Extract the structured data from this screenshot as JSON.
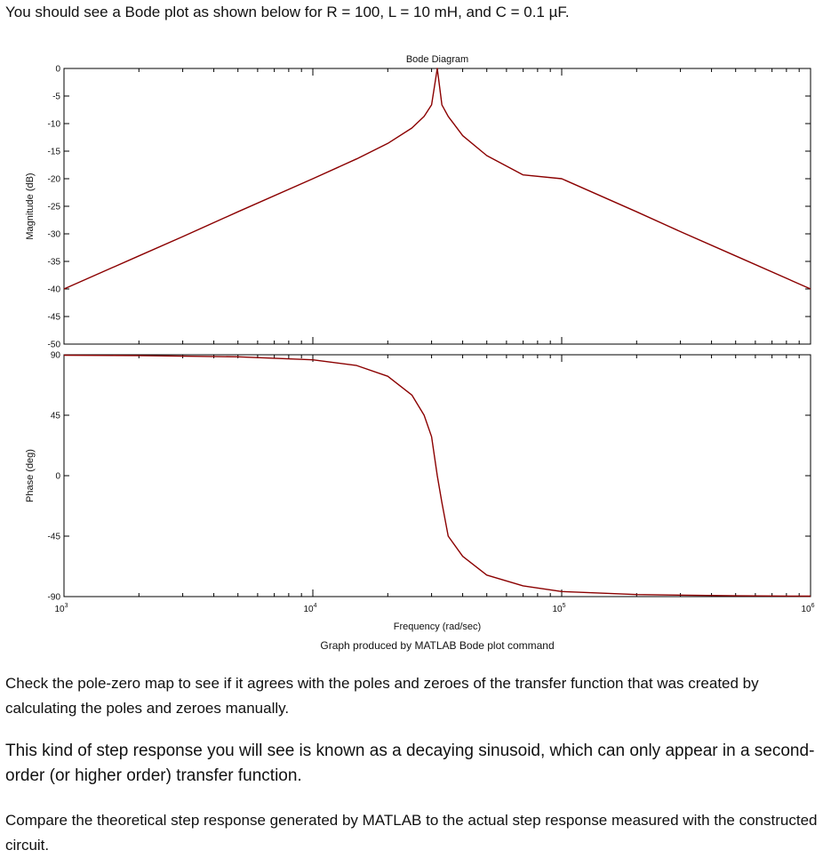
{
  "intro_text": "You should see a Bode plot as shown below for R = 100, L = 10 mH, and C = 0.1 µF.",
  "caption": "Graph produced by MATLAB Bode plot command",
  "paragraphs": [
    "Check the pole-zero map to see if it agrees with the poles and zeroes of the transfer function that was created by calculating the poles and zeroes manually.",
    "This kind of step response you will see is known as a decaying sinusoid, which can only appear in a second-order (or higher order) transfer function.",
    "Compare the theoretical step response generated by MATLAB to the actual step response measured with the constructed circuit."
  ],
  "colors": {
    "curve": "#8b0000",
    "axis": "#000000"
  },
  "chart_data": {
    "type": "line",
    "title": "Bode Diagram",
    "xlabel": "Frequency (rad/sec)",
    "xscale": "log",
    "xlim": [
      1000,
      1000000
    ],
    "x_tick_labels": [
      "10^3",
      "10^4",
      "10^5",
      "10^6"
    ],
    "grid": false,
    "panels": [
      {
        "name": "magnitude",
        "ylabel": "Magnitude (dB)",
        "ylim": [
          -50,
          0
        ],
        "y_ticks": [
          0,
          -5,
          -10,
          -15,
          -20,
          -25,
          -30,
          -35,
          -40,
          -45,
          -50
        ],
        "series": [
          {
            "x": [
              1000,
              2000,
              3000,
              5000,
              10000,
              15000,
              20000,
              25000,
              28000,
              30000,
              31623,
              33000,
              35000,
              40000,
              50000,
              70000,
              100000,
              200000,
              300000,
              500000,
              1000000
            ],
            "values": [
              -40,
              -34,
              -30.5,
              -26,
              -20,
              -16.4,
              -13.6,
              -10.8,
              -8.7,
              -6.6,
              0,
              -6.6,
              -8.7,
              -12.2,
              -15.8,
              -19.3,
              -20,
              -26,
              -29.6,
              -34,
              -40
            ]
          }
        ]
      },
      {
        "name": "phase",
        "ylabel": "Phase (deg)",
        "ylim": [
          -90,
          90
        ],
        "y_ticks": [
          90,
          45,
          0,
          -45,
          -90
        ],
        "series": [
          {
            "x": [
              1000,
              2000,
              5000,
              10000,
              15000,
              20000,
              25000,
              28000,
              30000,
              31623,
              33000,
              35000,
              40000,
              50000,
              70000,
              100000,
              200000,
              500000,
              1000000
            ],
            "values": [
              89.7,
              89.4,
              88.5,
              86.2,
              82,
              74,
              60,
              45,
              29,
              0,
              -20,
              -45,
              -60,
              -74,
              -82,
              -86.2,
              -88.5,
              -89.4,
              -89.7
            ]
          }
        ]
      }
    ]
  }
}
